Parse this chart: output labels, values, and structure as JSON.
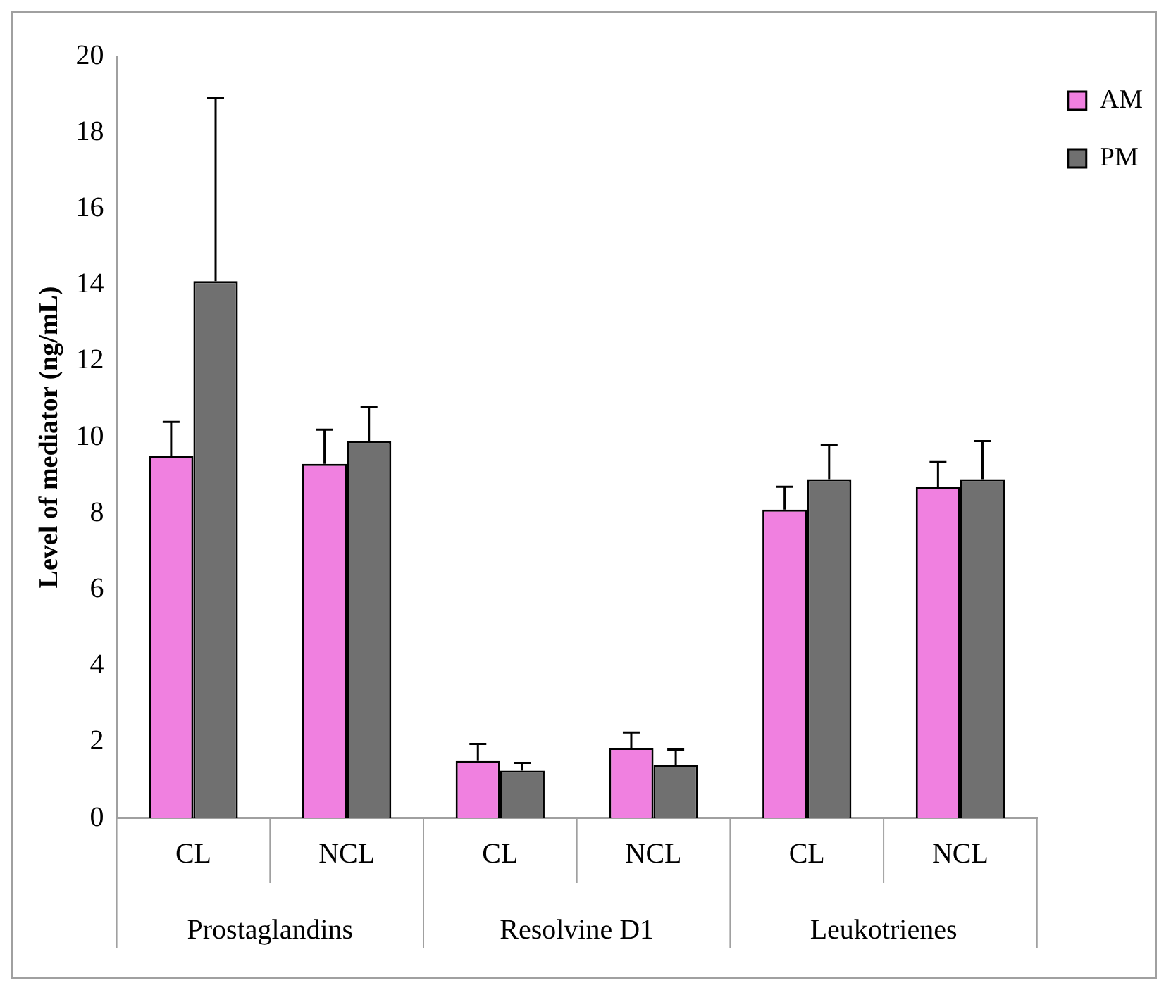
{
  "chart_data": {
    "type": "bar",
    "ylabel": "Level of mediator (ng/mL)",
    "categories": [
      "CL",
      "NCL",
      "CL",
      "NCL",
      "CL",
      "NCL"
    ],
    "annotations": [
      "Prostaglandins",
      "Resolvine D1",
      "Leukotrienes"
    ],
    "series": [
      {
        "name": "AM",
        "color": "#f080e0",
        "values": [
          9.5,
          9.3,
          1.5,
          1.85,
          8.1,
          8.7
        ],
        "errors": [
          [
            9.5,
            10.4
          ],
          [
            9.3,
            10.2
          ],
          [
            1.5,
            1.95
          ],
          [
            1.85,
            2.25
          ],
          [
            8.1,
            8.7
          ],
          [
            8.7,
            9.35
          ]
        ]
      },
      {
        "name": "PM",
        "color": "#707070",
        "values": [
          14.1,
          9.9,
          1.25,
          1.4,
          8.9,
          8.9
        ],
        "errors": [
          [
            14.1,
            18.9
          ],
          [
            9.9,
            10.8
          ],
          [
            1.25,
            1.45
          ],
          [
            1.4,
            1.8
          ],
          [
            8.9,
            9.8
          ],
          [
            8.9,
            9.9
          ]
        ]
      }
    ],
    "ylim": [
      0,
      20
    ],
    "yticks": [
      0,
      2,
      4,
      6,
      8,
      10,
      12,
      14,
      16,
      18,
      20
    ],
    "grid": false,
    "legend": "top right"
  }
}
